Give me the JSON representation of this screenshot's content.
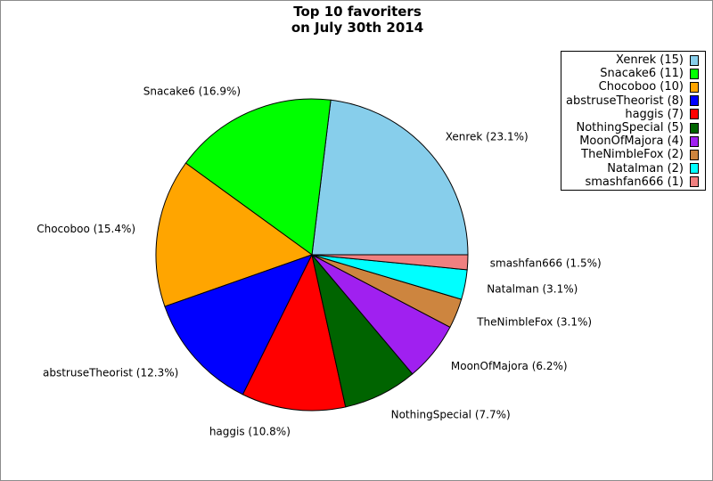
{
  "chart_data": {
    "type": "pie",
    "title": [
      "Top 10 favoriters",
      "on July 30th 2014"
    ],
    "slices": [
      {
        "name": "Xenrek",
        "value": 15,
        "percent_label": "Xenrek (23.1%)",
        "legend_label": "Xenrek (15)",
        "color": "#87ceeb"
      },
      {
        "name": "Snacake6",
        "value": 11,
        "percent_label": "Snacake6 (16.9%)",
        "legend_label": "Snacake6 (11)",
        "color": "#00ff00"
      },
      {
        "name": "Chocoboo",
        "value": 10,
        "percent_label": "Chocoboo (15.4%)",
        "legend_label": "Chocoboo (10)",
        "color": "#ffa500"
      },
      {
        "name": "abstruseTheorist",
        "value": 8,
        "percent_label": "abstruseTheorist (12.3%)",
        "legend_label": "abstruseTheorist (8)",
        "color": "#0000ff"
      },
      {
        "name": "haggis",
        "value": 7,
        "percent_label": "haggis (10.8%)",
        "legend_label": "haggis (7)",
        "color": "#ff0000"
      },
      {
        "name": "NothingSpecial",
        "value": 5,
        "percent_label": "NothingSpecial (7.7%)",
        "legend_label": "NothingSpecial (5)",
        "color": "#006400"
      },
      {
        "name": "MoonOfMajora",
        "value": 4,
        "percent_label": "MoonOfMajora (6.2%)",
        "legend_label": "MoonOfMajora (4)",
        "color": "#a020f0"
      },
      {
        "name": "TheNimbleFox",
        "value": 2,
        "percent_label": "TheNimbleFox (3.1%)",
        "legend_label": "TheNimbleFox (2)",
        "color": "#cd853f"
      },
      {
        "name": "Natalman",
        "value": 2,
        "percent_label": "Natalman (3.1%)",
        "legend_label": "Natalman (2)",
        "color": "#00ffff"
      },
      {
        "name": "smashfan666",
        "value": 1,
        "percent_label": "smashfan666 (1.5%)",
        "legend_label": "smashfan666 (1)",
        "color": "#f08080"
      }
    ],
    "start_angle": "3 o'clock",
    "direction": "counterclockwise",
    "legend_placement": "top-right"
  }
}
